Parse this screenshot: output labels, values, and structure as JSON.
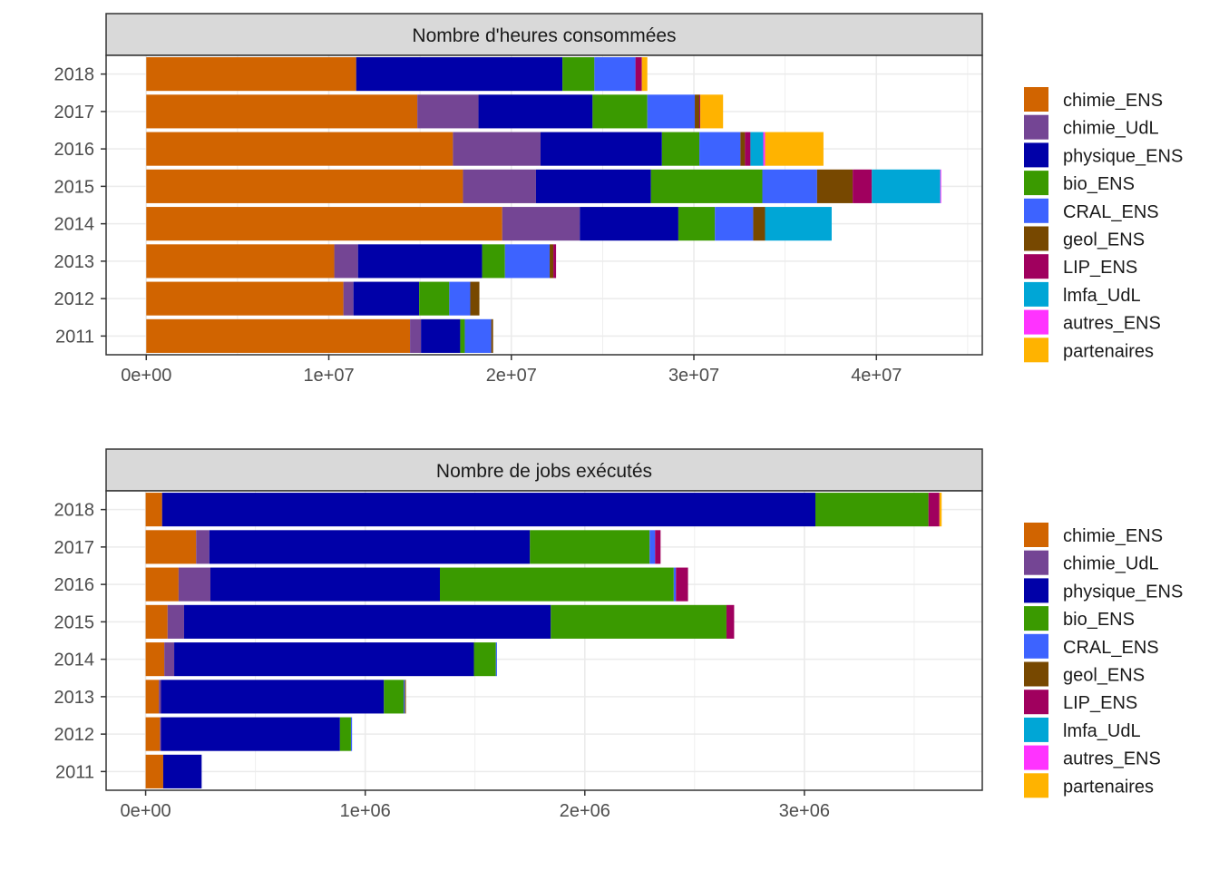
{
  "series_colors": {
    "chimie_ENS": "#D16400",
    "chimie_UdL": "#744594",
    "physique_ENS": "#0000A8",
    "bio_ENS": "#3A9A00",
    "CRAL_ENS": "#3D63FF",
    "geol_ENS": "#774800",
    "LIP_ENS": "#A0005E",
    "lmfa_UdL": "#00A6D6",
    "autres_ENS": "#FF33FF",
    "partenaires": "#FFB300"
  },
  "chart_data": [
    {
      "type": "bar",
      "orientation": "horizontal",
      "stacked": true,
      "title": "Nombre d'heures consommées",
      "xlim": [
        -2200000,
        45800000
      ],
      "xticks": [
        0,
        10000000,
        20000000,
        30000000,
        40000000
      ],
      "xtick_labels": [
        "0e+00",
        "1e+07",
        "2e+07",
        "3e+07",
        "4e+07"
      ],
      "categories": [
        "2018",
        "2017",
        "2016",
        "2015",
        "2014",
        "2013",
        "2012",
        "2011"
      ],
      "series": [
        {
          "name": "chimie_ENS",
          "values": [
            11500000,
            14850000,
            16800000,
            17350000,
            19500000,
            10300000,
            10800000,
            14450000
          ]
        },
        {
          "name": "chimie_UdL",
          "values": [
            0,
            3350000,
            4800000,
            4000000,
            4250000,
            1300000,
            550000,
            600000
          ]
        },
        {
          "name": "physique_ENS",
          "values": [
            11300000,
            6250000,
            6650000,
            6300000,
            5400000,
            6800000,
            3600000,
            2150000
          ]
        },
        {
          "name": "bio_ENS",
          "values": [
            1750000,
            3000000,
            2050000,
            6100000,
            2000000,
            1250000,
            1650000,
            250000
          ]
        },
        {
          "name": "CRAL_ENS",
          "values": [
            2250000,
            2600000,
            2250000,
            3000000,
            2100000,
            2450000,
            1150000,
            1450000
          ]
        },
        {
          "name": "geol_ENS",
          "values": [
            0,
            250000,
            250000,
            1950000,
            650000,
            200000,
            500000,
            100000
          ]
        },
        {
          "name": "LIP_ENS",
          "values": [
            350000,
            50000,
            300000,
            1050000,
            0,
            150000,
            0,
            0
          ]
        },
        {
          "name": "lmfa_UdL",
          "values": [
            0,
            0,
            700000,
            3750000,
            3650000,
            0,
            0,
            0
          ]
        },
        {
          "name": "autres_ENS",
          "values": [
            0,
            0,
            100000,
            50000,
            0,
            0,
            0,
            0
          ]
        },
        {
          "name": "partenaires",
          "values": [
            300000,
            1250000,
            3200000,
            0,
            0,
            0,
            0,
            0
          ]
        }
      ],
      "legend_position": "right",
      "grid": true
    },
    {
      "type": "bar",
      "orientation": "horizontal",
      "stacked": true,
      "title": "Nombre de jobs exécutés",
      "xlim": [
        -180000,
        3810000
      ],
      "xticks": [
        0,
        1000000,
        2000000,
        3000000
      ],
      "xtick_labels": [
        "0e+00",
        "1e+06",
        "2e+06",
        "3e+06"
      ],
      "categories": [
        "2018",
        "2017",
        "2016",
        "2015",
        "2014",
        "2013",
        "2012",
        "2011"
      ],
      "series": [
        {
          "name": "chimie_ENS",
          "values": [
            75000,
            230000,
            150000,
            100000,
            85000,
            60000,
            65000,
            80000
          ]
        },
        {
          "name": "chimie_UdL",
          "values": [
            0,
            60000,
            145000,
            75000,
            45000,
            10000,
            5000,
            0
          ]
        },
        {
          "name": "physique_ENS",
          "values": [
            2975000,
            1460000,
            1045000,
            1670000,
            1365000,
            1015000,
            815000,
            175000
          ]
        },
        {
          "name": "bio_ENS",
          "values": [
            515000,
            545000,
            1065000,
            800000,
            100000,
            90000,
            50000,
            0
          ]
        },
        {
          "name": "CRAL_ENS",
          "values": [
            0,
            25000,
            10000,
            0,
            5000,
            5000,
            5000,
            0
          ]
        },
        {
          "name": "geol_ENS",
          "values": [
            0,
            0,
            0,
            0,
            0,
            5000,
            0,
            0
          ]
        },
        {
          "name": "LIP_ENS",
          "values": [
            50000,
            25000,
            55000,
            35000,
            0,
            0,
            0,
            0
          ]
        },
        {
          "name": "lmfa_UdL",
          "values": [
            0,
            0,
            0,
            0,
            0,
            0,
            0,
            0
          ]
        },
        {
          "name": "autres_ENS",
          "values": [
            0,
            0,
            0,
            0,
            0,
            0,
            0,
            0
          ]
        },
        {
          "name": "partenaires",
          "values": [
            10000,
            0,
            0,
            0,
            0,
            0,
            0,
            0
          ]
        }
      ],
      "legend_position": "right",
      "grid": true
    }
  ]
}
